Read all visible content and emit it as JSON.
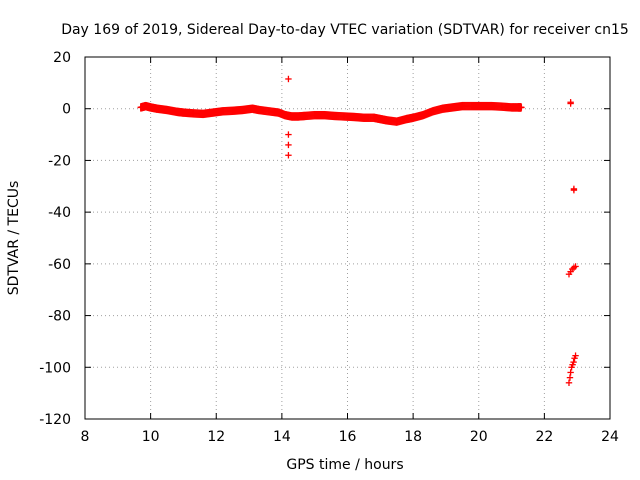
{
  "chart_data": {
    "type": "scatter",
    "title": "Day 169 of 2019, Sidereal Day-to-day VTEC variation (SDTVAR) for receiver cn15",
    "xlabel": "GPS time / hours",
    "ylabel": "SDTVAR / TECUs",
    "xlim": [
      8,
      24
    ],
    "ylim": [
      -120,
      20
    ],
    "xticks": [
      "8",
      "10",
      "12",
      "14",
      "16",
      "18",
      "20",
      "22",
      "24"
    ],
    "yticks": [
      "20",
      "0",
      "-20",
      "-40",
      "-60",
      "-80",
      "-100",
      "-120"
    ],
    "grid": true,
    "marker": "+",
    "marker_color": "#ff0000",
    "series": [
      {
        "name": "SDTVAR",
        "x": [
          9.7,
          9.85,
          10.0,
          10.2,
          10.5,
          10.8,
          11.0,
          11.3,
          11.6,
          11.9,
          12.2,
          12.5,
          12.8,
          13.1,
          13.3,
          13.6,
          13.9,
          14.1,
          14.3,
          14.5,
          14.7,
          15.0,
          15.3,
          15.6,
          15.9,
          16.2,
          16.5,
          16.8,
          17.0,
          17.2,
          17.5,
          17.8,
          18.0,
          18.3,
          18.6,
          18.9,
          19.2,
          19.5,
          19.8,
          20.1,
          20.4,
          20.7,
          21.0,
          21.2,
          21.3,
          14.2,
          14.2,
          14.2,
          14.2,
          22.8,
          22.8,
          22.9,
          22.9,
          22.75,
          22.8,
          22.85,
          22.9,
          22.95,
          22.75,
          22.78,
          22.8,
          22.83,
          22.86,
          22.89,
          22.92,
          22.95
        ],
        "y": [
          0.5,
          1.0,
          0.5,
          0.0,
          -0.5,
          -1.2,
          -1.5,
          -1.8,
          -2.0,
          -1.5,
          -1.0,
          -0.8,
          -0.5,
          0.0,
          -0.5,
          -1.0,
          -1.5,
          -2.5,
          -3.0,
          -3.0,
          -2.8,
          -2.5,
          -2.5,
          -2.8,
          -3.0,
          -3.2,
          -3.5,
          -3.5,
          -4.0,
          -4.5,
          -5.0,
          -4.0,
          -3.5,
          -2.5,
          -1.0,
          0.0,
          0.5,
          1.0,
          1.0,
          1.0,
          1.0,
          0.8,
          0.5,
          0.5,
          0.5,
          11.5,
          -10.0,
          -14.0,
          -18.0,
          2.5,
          2.0,
          -31.5,
          -31.0,
          -64.0,
          -63.0,
          -62.0,
          -61.5,
          -61.0,
          -106.0,
          -104.0,
          -102.0,
          -100.0,
          -99.0,
          -98.0,
          -96.5,
          -95.5
        ]
      }
    ]
  }
}
